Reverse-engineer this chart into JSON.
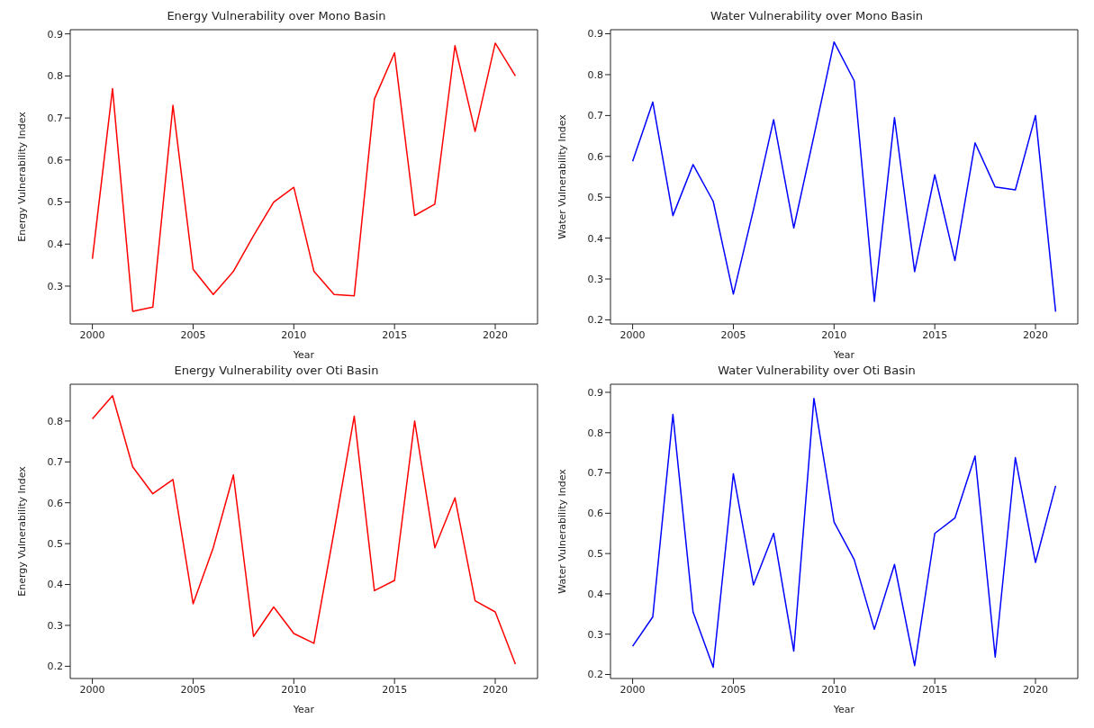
{
  "chart_data": [
    {
      "type": "line",
      "title": "Energy Vulnerability over Mono Basin",
      "xlabel": "Year",
      "ylabel": "Energy Vulnerability Index",
      "color": "#ff0000",
      "x": [
        2000,
        2001,
        2002,
        2003,
        2004,
        2005,
        2006,
        2007,
        2008,
        2009,
        2010,
        2011,
        2012,
        2013,
        2014,
        2015,
        2016,
        2017,
        2018,
        2019,
        2020,
        2021
      ],
      "values": [
        0.365,
        0.77,
        0.24,
        0.25,
        0.73,
        0.34,
        0.28,
        0.335,
        0.42,
        0.5,
        0.535,
        0.335,
        0.28,
        0.277,
        0.745,
        0.855,
        0.468,
        0.495,
        0.872,
        0.668,
        0.878,
        0.8
      ],
      "xlim": [
        1998.9,
        2022.1
      ],
      "xticks": [
        2000,
        2005,
        2010,
        2015,
        2020
      ],
      "ylim": [
        0.21,
        0.91
      ],
      "yticks": [
        0.3,
        0.4,
        0.5,
        0.6,
        0.7,
        0.8,
        0.9
      ],
      "grid": false
    },
    {
      "type": "line",
      "title": "Water Vulnerability over Mono Basin",
      "xlabel": "Year",
      "ylabel": "Water Vulnerability Index",
      "color": "#0000ff",
      "x": [
        2000,
        2001,
        2002,
        2003,
        2004,
        2005,
        2006,
        2007,
        2008,
        2009,
        2010,
        2011,
        2012,
        2013,
        2014,
        2015,
        2016,
        2017,
        2018,
        2019,
        2020,
        2021
      ],
      "values": [
        0.588,
        0.733,
        0.455,
        0.58,
        0.49,
        0.263,
        0.47,
        0.69,
        0.425,
        0.65,
        0.88,
        0.785,
        0.245,
        0.695,
        0.318,
        0.555,
        0.345,
        0.633,
        0.525,
        0.518,
        0.7,
        0.22
      ],
      "xlim": [
        1998.9,
        2022.1
      ],
      "xticks": [
        2000,
        2005,
        2010,
        2015,
        2020
      ],
      "ylim": [
        0.19,
        0.91
      ],
      "yticks": [
        0.2,
        0.3,
        0.4,
        0.5,
        0.6,
        0.7,
        0.8,
        0.9
      ],
      "grid": false
    },
    {
      "type": "line",
      "title": "Energy Vulnerability over Oti Basin",
      "xlabel": "Year",
      "ylabel": "Energy Vulnerability Index",
      "color": "#ff0000",
      "x": [
        2000,
        2001,
        2002,
        2003,
        2004,
        2005,
        2006,
        2007,
        2008,
        2009,
        2010,
        2011,
        2012,
        2013,
        2014,
        2015,
        2016,
        2017,
        2018,
        2019,
        2020,
        2021
      ],
      "values": [
        0.805,
        0.862,
        0.688,
        0.622,
        0.657,
        0.353,
        0.49,
        0.668,
        0.273,
        0.345,
        0.28,
        0.256,
        0.53,
        0.812,
        0.385,
        0.41,
        0.8,
        0.49,
        0.612,
        0.36,
        0.333,
        0.205
      ],
      "xlim": [
        1998.9,
        2022.1
      ],
      "xticks": [
        2000,
        2005,
        2010,
        2015,
        2020
      ],
      "ylim": [
        0.17,
        0.89
      ],
      "yticks": [
        0.2,
        0.3,
        0.4,
        0.5,
        0.6,
        0.7,
        0.8
      ],
      "grid": false
    },
    {
      "type": "line",
      "title": "Water Vulnerability over Oti Basin",
      "xlabel": "Year",
      "ylabel": "Water Vulnerability Index",
      "color": "#0000ff",
      "x": [
        2000,
        2001,
        2002,
        2003,
        2004,
        2005,
        2006,
        2007,
        2008,
        2009,
        2010,
        2011,
        2012,
        2013,
        2014,
        2015,
        2016,
        2017,
        2018,
        2019,
        2020,
        2021
      ],
      "values": [
        0.27,
        0.343,
        0.845,
        0.355,
        0.218,
        0.698,
        0.422,
        0.55,
        0.258,
        0.885,
        0.578,
        0.485,
        0.312,
        0.473,
        0.222,
        0.55,
        0.588,
        0.742,
        0.243,
        0.738,
        0.478,
        0.668
      ],
      "xlim": [
        1998.9,
        2022.1
      ],
      "xticks": [
        2000,
        2005,
        2010,
        2015,
        2020
      ],
      "ylim": [
        0.19,
        0.92
      ],
      "yticks": [
        0.2,
        0.3,
        0.4,
        0.5,
        0.6,
        0.7,
        0.8,
        0.9
      ],
      "grid": false
    }
  ]
}
